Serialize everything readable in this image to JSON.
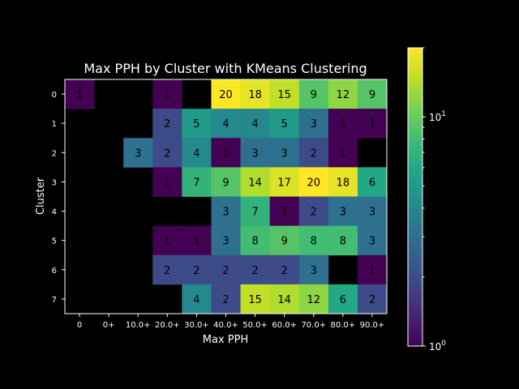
{
  "chart_data": {
    "type": "heatmap",
    "title": "Max PPH by Cluster with KMeans Clustering",
    "xlabel": "Max PPH",
    "ylabel": "Cluster",
    "x_categories": [
      "0",
      "0+",
      "10.0+",
      "20.0+",
      "30.0+",
      "40.0+",
      "50.0+",
      "60.0+",
      "70.0+",
      "80.0+",
      "90.0+"
    ],
    "y_categories": [
      "0",
      "1",
      "2",
      "3",
      "4",
      "5",
      "6",
      "7"
    ],
    "values": [
      [
        1,
        null,
        null,
        1,
        null,
        20,
        18,
        15,
        9,
        12,
        9
      ],
      [
        null,
        null,
        null,
        2,
        5,
        4,
        4,
        5,
        3,
        1,
        1
      ],
      [
        null,
        null,
        3,
        2,
        4,
        1,
        3,
        3,
        2,
        1,
        null
      ],
      [
        null,
        null,
        null,
        1,
        7,
        9,
        14,
        17,
        20,
        18,
        6
      ],
      [
        null,
        null,
        null,
        null,
        null,
        3,
        7,
        1,
        2,
        3,
        3
      ],
      [
        null,
        null,
        null,
        1,
        1,
        3,
        8,
        9,
        8,
        8,
        3
      ],
      [
        null,
        null,
        null,
        2,
        2,
        2,
        2,
        2,
        3,
        null,
        1
      ],
      [
        null,
        null,
        null,
        null,
        4,
        2,
        15,
        14,
        12,
        6,
        2
      ]
    ],
    "colorscale": "viridis",
    "color_scale_type": "log",
    "color_range": [
      1,
      20
    ],
    "colorbar_ticks": [
      {
        "base": "10",
        "exp": "0",
        "value": 1
      },
      {
        "base": "10",
        "exp": "1",
        "value": 10
      }
    ],
    "background": "#000000",
    "missing_color": "#000000"
  }
}
